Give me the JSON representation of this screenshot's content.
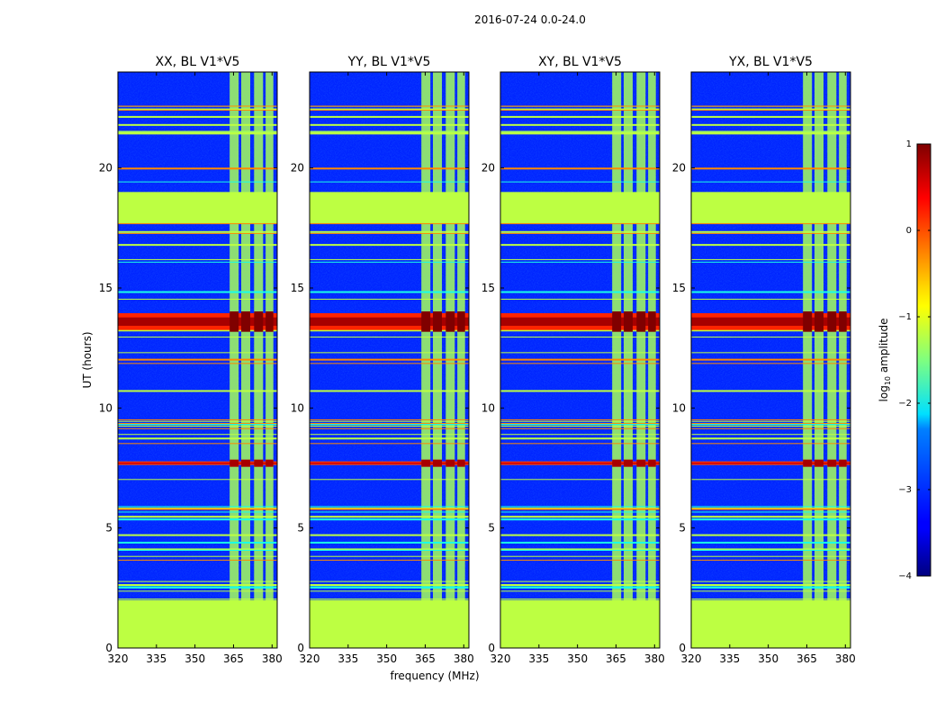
{
  "suptitle": "2016-07-24 0.0-24.0",
  "chart_data": {
    "type": "heatmap",
    "shared": {
      "xlabel": "frequency (MHz)",
      "ylabel": "UT (hours)",
      "xlim": [
        320,
        382
      ],
      "ylim": [
        0,
        24
      ],
      "xticks": [
        320,
        335,
        350,
        365,
        380
      ],
      "yticks": [
        0,
        5,
        10,
        15,
        20
      ],
      "colorbar": {
        "label_main": "log",
        "label_sub": "10",
        "label_rest": " amplitude",
        "range": [
          -4,
          1
        ],
        "ticks": [
          1,
          0,
          -1,
          -2,
          -3,
          -4
        ],
        "tick_labels": [
          "1",
          "0",
          "−1",
          "−2",
          "−3",
          "−4"
        ],
        "colormap": "jet"
      }
    },
    "panels": [
      {
        "title": "XX, BL V1*V5"
      },
      {
        "title": "YY, BL V1*V5"
      },
      {
        "title": "XY, BL V1*V5"
      },
      {
        "title": "YX, BL V1*V5"
      }
    ],
    "flagged_ut_ranges": [
      [
        0,
        2
      ],
      [
        17.7,
        19
      ]
    ],
    "background_level": -3.2,
    "flagged_level": -1.2,
    "bright_rfi": [
      {
        "ut": 13.6,
        "width": 0.7,
        "level": 0.8
      },
      {
        "ut": 7.7,
        "width": 0.15,
        "level": 0.6
      }
    ],
    "rfi_bands_mhz": [
      [
        363.5,
        367
      ],
      [
        368,
        371.5
      ],
      [
        373,
        376.5
      ],
      [
        377.5,
        380.5
      ]
    ],
    "rfi_band_level": -1.3
  }
}
